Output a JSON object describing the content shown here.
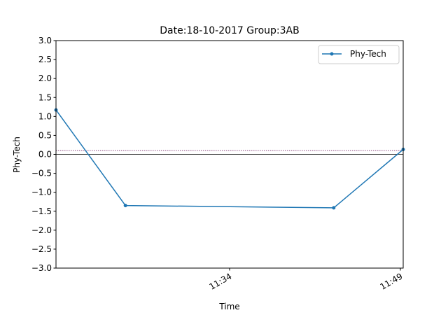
{
  "chart_data": {
    "type": "line",
    "title": "Date:18-10-2017 Group:3AB",
    "xlabel": "Time",
    "ylabel": "Phy-Tech",
    "ylim": [
      -3.0,
      3.0
    ],
    "yticks": [
      "3.0",
      "2.5",
      "2.0",
      "1.5",
      "1.0",
      "0.5",
      "0.0",
      "−0.5",
      "−1.0",
      "−1.5",
      "−2.0",
      "−2.5",
      "−3.0"
    ],
    "xlim": [
      "11:19",
      "11:49"
    ],
    "xticks": [
      {
        "label": "11:34",
        "time": "11:34"
      },
      {
        "label": "11:49",
        "time": "11:49"
      }
    ],
    "series": [
      {
        "name": "Phy-Tech",
        "color": "#1f77b4",
        "points": [
          {
            "time": "11:19",
            "value": 1.17
          },
          {
            "time": "11:25",
            "value": -1.35
          },
          {
            "time": "11:43",
            "value": -1.41
          },
          {
            "time": "11:49",
            "value": 0.13
          }
        ]
      }
    ],
    "reference_lines": [
      {
        "value": 0.1,
        "style": "dotted",
        "color": "#7b2a6b"
      },
      {
        "value": 0.0,
        "style": "solid",
        "color": "#000000"
      }
    ],
    "legend_placement": "top-right",
    "grid": false
  }
}
